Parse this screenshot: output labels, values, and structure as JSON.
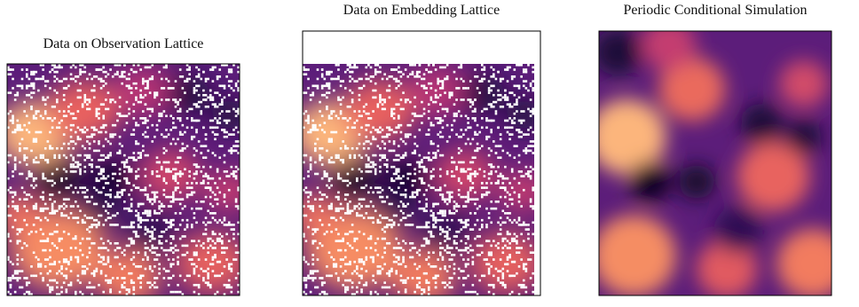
{
  "panels": [
    {
      "title": "Data on Observation Lattice"
    },
    {
      "title": "Data on Embedding Lattice"
    },
    {
      "title": "Periodic Conditional Simulation"
    }
  ]
}
